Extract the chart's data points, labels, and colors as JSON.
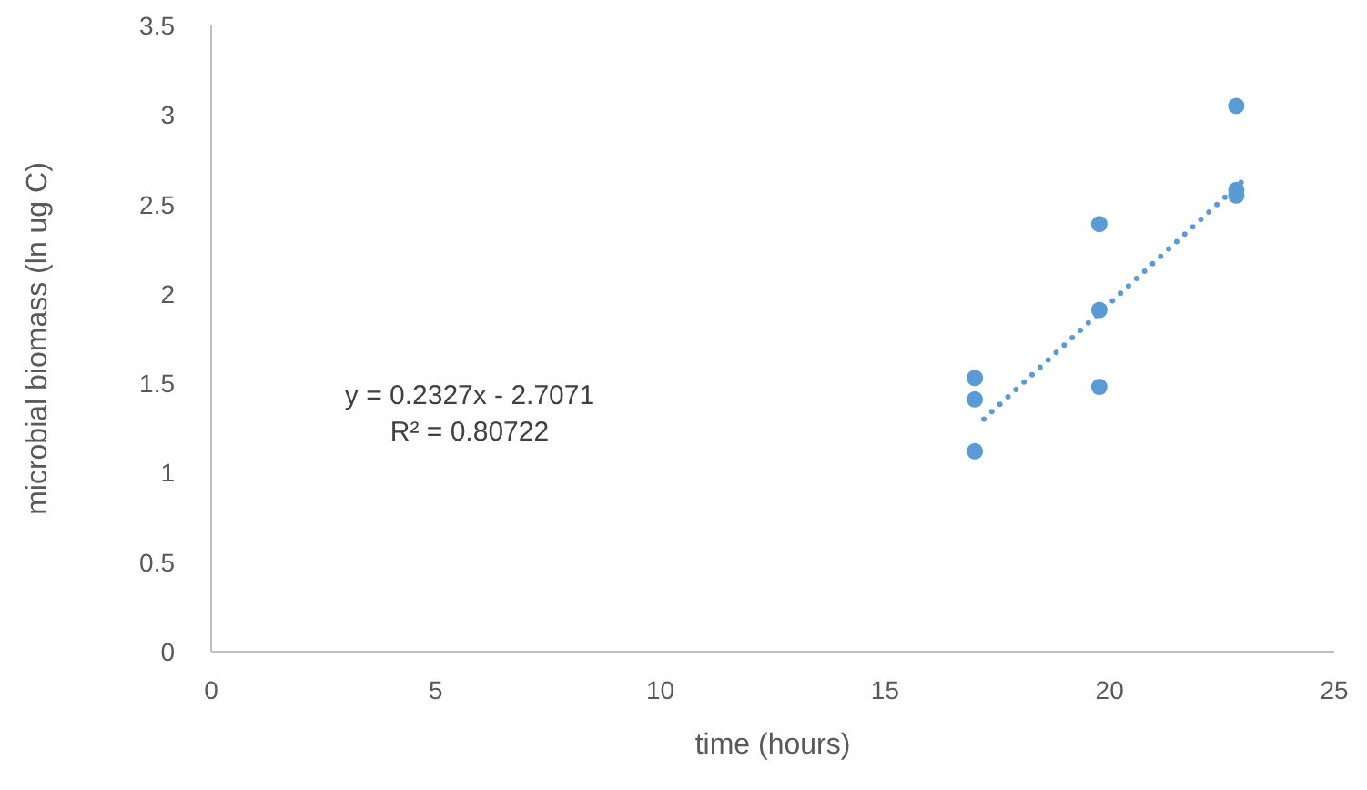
{
  "chart_data": {
    "type": "scatter",
    "xlabel": "time (hours)",
    "ylabel": "microbial biomass (ln ug C)",
    "xlim": [
      0,
      25
    ],
    "xticks": [
      0,
      5,
      10,
      15,
      20,
      25
    ],
    "ylim": [
      0,
      3.5
    ],
    "yticks": [
      0,
      0.5,
      1,
      1.5,
      2,
      2.5,
      3,
      3.5
    ],
    "grid": false,
    "marker": "circle",
    "annotations": [
      "y = 0.2327x - 2.7071",
      "R² = 0.80722"
    ],
    "series": [
      {
        "color": "#5b9bd5",
        "x": [
          17,
          17,
          17,
          19.77,
          19.77,
          19.77,
          22.82,
          22.82,
          22.82
        ],
        "values": [
          1.53,
          1.41,
          1.12,
          2.39,
          1.91,
          1.48,
          3.05,
          2.58,
          2.55
        ]
      },
      {
        "type": "line",
        "color": "#5b9bd5",
        "line_style": "dotted",
        "marker": "none",
        "x": [
          17.2,
          23.0
        ],
        "values": [
          1.3,
          2.64
        ]
      }
    ]
  }
}
